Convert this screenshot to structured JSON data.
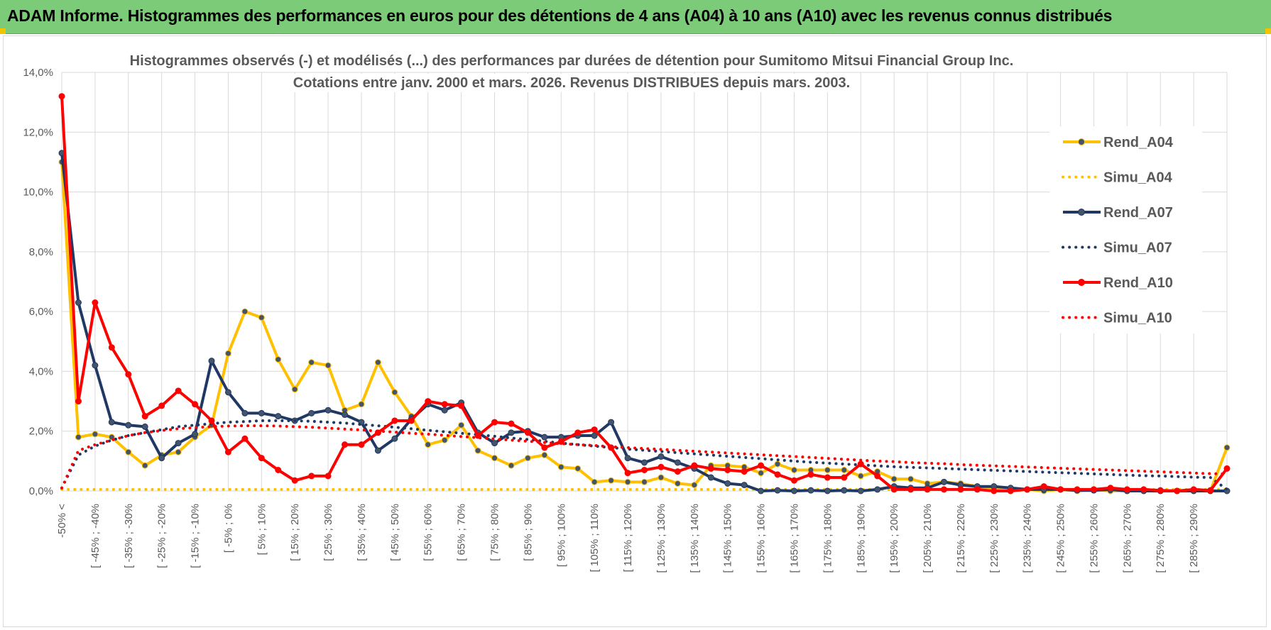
{
  "header": {
    "title": "ADAM Informe. Histogrammes des performances en euros pour des détentions de 4 ans (A04) à 10 ans (A10) avec les revenus connus distribués"
  },
  "chart_data": {
    "type": "line",
    "title_line1": "Histogrammes observés (-) et modélisés (...) des performances par durées de détention pour Sumitomo Mitsui Financial Group Inc.",
    "title_line2": "Cotations entre janv. 2000 et mars. 2026.  Revenus DISTRIBUES depuis mars. 2003.",
    "xlabel": "",
    "ylabel": "",
    "ylim": [
      0,
      14
    ],
    "y_ticks": [
      "0,0%",
      "2,0%",
      "4,0%",
      "6,0%",
      "8,0%",
      "10,0%",
      "12,0%",
      "14,0%"
    ],
    "grid": true,
    "legend_position": "right",
    "x_tick_labels": [
      "-50% <",
      "[ -45% ; -40%",
      "[ -35% ; -30%",
      "[ -25% ; -20%",
      "[ -15% ; -10%",
      "[ -5% ; 0%",
      "[ 5% ; 10%",
      "[ 15% ; 20%",
      "[ 25% ; 30%",
      "[ 35% ; 40%",
      "[ 45% ; 50%",
      "[ 55% ; 60%",
      "[ 65% ; 70%",
      "[ 75% ; 80%",
      "[ 85% ; 90%",
      "[ 95% ; 100%",
      "[ 105% ; 110%",
      "[ 115% ; 120%",
      "[ 125% ; 130%",
      "[ 135% ; 140%",
      "[ 145% ; 150%",
      "[ 155% ; 160%",
      "[ 165% ; 170%",
      "[ 175% ; 180%",
      "[ 185% ; 190%",
      "[ 195% ; 200%",
      "[ 205% ; 210%",
      "[ 215% ; 220%",
      "[ 225% ; 230%",
      "[ 235% ; 240%",
      "[ 245% ; 250%",
      "[ 255% ; 260%",
      "[ 265% ; 270%",
      "[ 275% ; 280%",
      "[ 285% ; 290%"
    ],
    "series": [
      {
        "name": "Rend_A04",
        "style": "solid",
        "color": "#ffc000",
        "values": [
          11.0,
          1.8,
          1.9,
          1.8,
          1.3,
          0.85,
          1.2,
          1.3,
          1.8,
          2.2,
          4.6,
          6.0,
          5.8,
          4.4,
          3.4,
          4.3,
          4.2,
          2.7,
          2.9,
          4.3,
          3.3,
          2.5,
          1.55,
          1.7,
          2.2,
          1.35,
          1.1,
          0.85,
          1.1,
          1.2,
          0.8,
          0.75,
          0.3,
          0.35,
          0.3,
          0.3,
          0.45,
          0.25,
          0.2,
          0.85,
          0.85,
          0.8,
          0.6,
          0.9,
          0.7,
          0.7,
          0.7,
          0.7,
          0.5,
          0.65,
          0.4,
          0.4,
          0.25,
          0.3,
          0.25,
          0.15,
          0.1,
          0.0,
          0.05,
          0.0,
          0.05,
          0.0,
          0.05,
          0.0,
          0.0,
          0.0,
          0.0,
          0.0,
          0.0,
          0.0,
          1.45
        ]
      },
      {
        "name": "Simu_A04",
        "style": "dotted",
        "color": "#ffc000",
        "values": [
          0.05,
          0.05,
          0.05,
          0.05,
          0.05,
          0.05,
          0.05,
          0.05,
          0.05,
          0.05,
          0.05,
          0.05,
          0.05,
          0.05,
          0.05,
          0.05,
          0.05,
          0.05,
          0.05,
          0.05,
          0.05,
          0.05,
          0.05,
          0.05,
          0.05,
          0.05,
          0.05,
          0.05,
          0.05,
          0.05,
          0.05,
          0.05,
          0.05,
          0.05,
          0.05,
          0.05,
          0.05,
          0.05,
          0.05,
          0.05,
          0.05,
          0.05,
          0.05,
          0.05,
          0.05,
          0.05,
          0.05,
          0.05,
          0.05,
          0.05,
          0.05,
          0.05,
          0.05,
          0.05,
          0.05,
          0.05,
          0.05,
          0.05,
          0.05,
          0.05,
          0.05,
          0.05,
          0.05,
          0.05,
          0.05,
          0.05,
          0.05,
          0.05,
          0.05,
          0.05,
          0.05
        ]
      },
      {
        "name": "Rend_A07",
        "style": "solid",
        "color": "#203864",
        "values": [
          11.3,
          6.3,
          4.2,
          2.3,
          2.2,
          2.15,
          1.1,
          1.6,
          1.9,
          4.35,
          3.3,
          2.6,
          2.6,
          2.5,
          2.35,
          2.6,
          2.7,
          2.55,
          2.3,
          1.35,
          1.75,
          2.4,
          2.9,
          2.7,
          2.95,
          1.95,
          1.6,
          1.95,
          2.0,
          1.8,
          1.8,
          1.85,
          1.85,
          2.3,
          1.1,
          0.95,
          1.15,
          0.95,
          0.75,
          0.45,
          0.25,
          0.2,
          0.0,
          0.02,
          0.0,
          0.02,
          0.0,
          0.02,
          0.0,
          0.05,
          0.15,
          0.1,
          0.1,
          0.3,
          0.2,
          0.15,
          0.15,
          0.1,
          0.05,
          0.05,
          0.05,
          0.02,
          0.02,
          0.05,
          0.0,
          0.0,
          0.0,
          0.0,
          0.0,
          0.0,
          0.0
        ]
      },
      {
        "name": "Simu_A07",
        "style": "dotted",
        "color": "#203864",
        "values": [
          0.1,
          1.2,
          1.5,
          1.7,
          1.85,
          1.95,
          2.05,
          2.15,
          2.2,
          2.25,
          2.3,
          2.32,
          2.35,
          2.35,
          2.35,
          2.33,
          2.3,
          2.27,
          2.22,
          2.18,
          2.13,
          2.08,
          2.03,
          1.98,
          1.93,
          1.88,
          1.83,
          1.77,
          1.72,
          1.66,
          1.6,
          1.55,
          1.5,
          1.45,
          1.4,
          1.36,
          1.32,
          1.28,
          1.24,
          1.2,
          1.16,
          1.12,
          1.08,
          1.04,
          1.0,
          0.96,
          0.93,
          0.9,
          0.87,
          0.84,
          0.81,
          0.79,
          0.77,
          0.75,
          0.73,
          0.71,
          0.69,
          0.67,
          0.65,
          0.63,
          0.61,
          0.59,
          0.57,
          0.55,
          0.53,
          0.51,
          0.5,
          0.48,
          0.46,
          0.45,
          0.05
        ]
      },
      {
        "name": "Rend_A10",
        "style": "solid",
        "color": "#ff0000",
        "values": [
          13.2,
          3.0,
          6.3,
          4.8,
          3.9,
          2.5,
          2.85,
          3.35,
          2.9,
          2.35,
          1.3,
          1.75,
          1.1,
          0.7,
          0.35,
          0.5,
          0.5,
          1.55,
          1.55,
          1.95,
          2.35,
          2.35,
          3.0,
          2.9,
          2.85,
          1.85,
          2.3,
          2.25,
          1.95,
          1.45,
          1.65,
          1.95,
          2.05,
          1.45,
          0.6,
          0.7,
          0.8,
          0.65,
          0.85,
          0.75,
          0.7,
          0.65,
          0.85,
          0.55,
          0.35,
          0.55,
          0.45,
          0.45,
          0.9,
          0.5,
          0.05,
          0.05,
          0.05,
          0.05,
          0.05,
          0.05,
          0.0,
          0.0,
          0.05,
          0.15,
          0.05,
          0.05,
          0.05,
          0.1,
          0.05,
          0.05,
          0.02,
          0.0,
          0.05,
          0.02,
          0.75
        ]
      },
      {
        "name": "Simu_A10",
        "style": "dotted",
        "color": "#ff0000",
        "values": [
          0.1,
          1.35,
          1.55,
          1.7,
          1.85,
          1.95,
          2.02,
          2.08,
          2.12,
          2.15,
          2.17,
          2.18,
          2.18,
          2.17,
          2.15,
          2.13,
          2.1,
          2.07,
          2.04,
          2.0,
          1.97,
          1.93,
          1.9,
          1.86,
          1.82,
          1.78,
          1.74,
          1.7,
          1.66,
          1.62,
          1.58,
          1.55,
          1.52,
          1.48,
          1.45,
          1.42,
          1.39,
          1.36,
          1.33,
          1.3,
          1.27,
          1.24,
          1.21,
          1.18,
          1.15,
          1.12,
          1.09,
          1.06,
          1.03,
          1.0,
          0.98,
          0.95,
          0.93,
          0.91,
          0.88,
          0.86,
          0.84,
          0.82,
          0.8,
          0.78,
          0.76,
          0.74,
          0.72,
          0.7,
          0.68,
          0.66,
          0.64,
          0.62,
          0.6,
          0.58,
          0.57
        ]
      }
    ]
  }
}
